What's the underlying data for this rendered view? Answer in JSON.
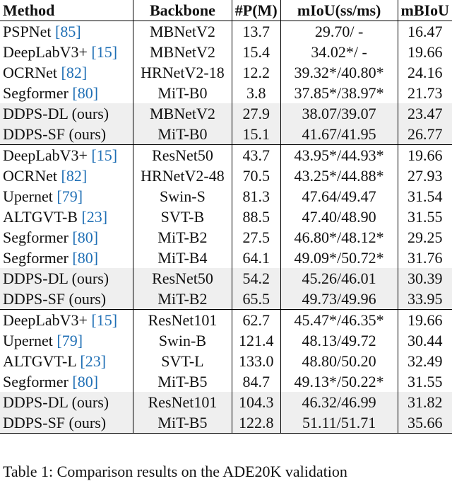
{
  "headers": [
    "Method",
    "Backbone",
    "#P(M)",
    "mIoU(ss/ms)",
    "mBIoU"
  ],
  "groups": [
    [
      {
        "method": "PSPNet",
        "ref": "85",
        "backbone": "MBNetV2",
        "params": "13.7",
        "miou": "29.70/ -",
        "mbiou": "16.47",
        "ours": false
      },
      {
        "method": "DeepLabV3+",
        "ref": "15",
        "backbone": "MBNetV2",
        "params": "15.4",
        "miou": "34.02*/ -",
        "mbiou": "19.66",
        "ours": false
      },
      {
        "method": "OCRNet",
        "ref": "82",
        "backbone": "HRNetV2-18",
        "params": "12.2",
        "miou": "39.32*/40.80*",
        "mbiou": "24.16",
        "ours": false
      },
      {
        "method": "Segformer",
        "ref": "80",
        "backbone": "MiT-B0",
        "params": "3.8",
        "miou": "37.85*/38.97*",
        "mbiou": "21.73",
        "ours": false
      },
      {
        "method": "DDPS-DL (ours)",
        "ref": null,
        "backbone": "MBNetV2",
        "params": "27.9",
        "miou": "38.07/39.07",
        "mbiou": "23.47",
        "ours": true
      },
      {
        "method": "DDPS-SF (ours)",
        "ref": null,
        "backbone": "MiT-B0",
        "params": "15.1",
        "miou": "41.67/41.95",
        "mbiou": "26.77",
        "ours": true
      }
    ],
    [
      {
        "method": "DeepLabV3+",
        "ref": "15",
        "backbone": "ResNet50",
        "params": "43.7",
        "miou": "43.95*/44.93*",
        "mbiou": "19.66",
        "ours": false
      },
      {
        "method": "OCRNet",
        "ref": "82",
        "backbone": "HRNetV2-48",
        "params": "70.5",
        "miou": "43.25*/44.88*",
        "mbiou": "27.93",
        "ours": false
      },
      {
        "method": "Upernet",
        "ref": "79",
        "backbone": "Swin-S",
        "params": "81.3",
        "miou": "47.64/49.47",
        "mbiou": "31.54",
        "ours": false
      },
      {
        "method": "ALTGVT-B",
        "ref": "23",
        "backbone": "SVT-B",
        "params": "88.5",
        "miou": "47.40/48.90",
        "mbiou": "31.55",
        "ours": false
      },
      {
        "method": "Segformer",
        "ref": "80",
        "backbone": "MiT-B2",
        "params": "27.5",
        "miou": "46.80*/48.12*",
        "mbiou": "29.25",
        "ours": false
      },
      {
        "method": "Segformer",
        "ref": "80",
        "backbone": "MiT-B4",
        "params": "64.1",
        "miou": "49.09*/50.72*",
        "mbiou": "31.76",
        "ours": false
      },
      {
        "method": "DDPS-DL (ours)",
        "ref": null,
        "backbone": "ResNet50",
        "params": "54.2",
        "miou": "45.26/46.01",
        "mbiou": "30.39",
        "ours": true
      },
      {
        "method": "DDPS-SF (ours)",
        "ref": null,
        "backbone": "MiT-B2",
        "params": "65.5",
        "miou": "49.73/49.96",
        "mbiou": "33.95",
        "ours": true
      }
    ],
    [
      {
        "method": "DeepLabV3+",
        "ref": "15",
        "backbone": "ResNet101",
        "params": "62.7",
        "miou": "45.47*/46.35*",
        "mbiou": "19.66",
        "ours": false
      },
      {
        "method": "Upernet",
        "ref": "79",
        "backbone": "Swin-B",
        "params": "121.4",
        "miou": "48.13/49.72",
        "mbiou": "30.44",
        "ours": false
      },
      {
        "method": "ALTGVT-L",
        "ref": "23",
        "backbone": "SVT-L",
        "params": "133.0",
        "miou": "48.80/50.20",
        "mbiou": "32.49",
        "ours": false
      },
      {
        "method": "Segformer",
        "ref": "80",
        "backbone": "MiT-B5",
        "params": "84.7",
        "miou": "49.13*/50.22*",
        "mbiou": "31.55",
        "ours": false
      },
      {
        "method": "DDPS-DL (ours)",
        "ref": null,
        "backbone": "ResNet101",
        "params": "104.3",
        "miou": "46.32/46.99",
        "mbiou": "31.82",
        "ours": true
      },
      {
        "method": "DDPS-SF (ours)",
        "ref": null,
        "backbone": "MiT-B5",
        "params": "122.8",
        "miou": "51.11/51.71",
        "mbiou": "35.66",
        "ours": true
      }
    ]
  ],
  "caption": "Table 1: Comparison results on the ADE20K validation",
  "colors": {
    "ref_link": "#1f6fb5",
    "ours_row_bg": "#efefef"
  }
}
